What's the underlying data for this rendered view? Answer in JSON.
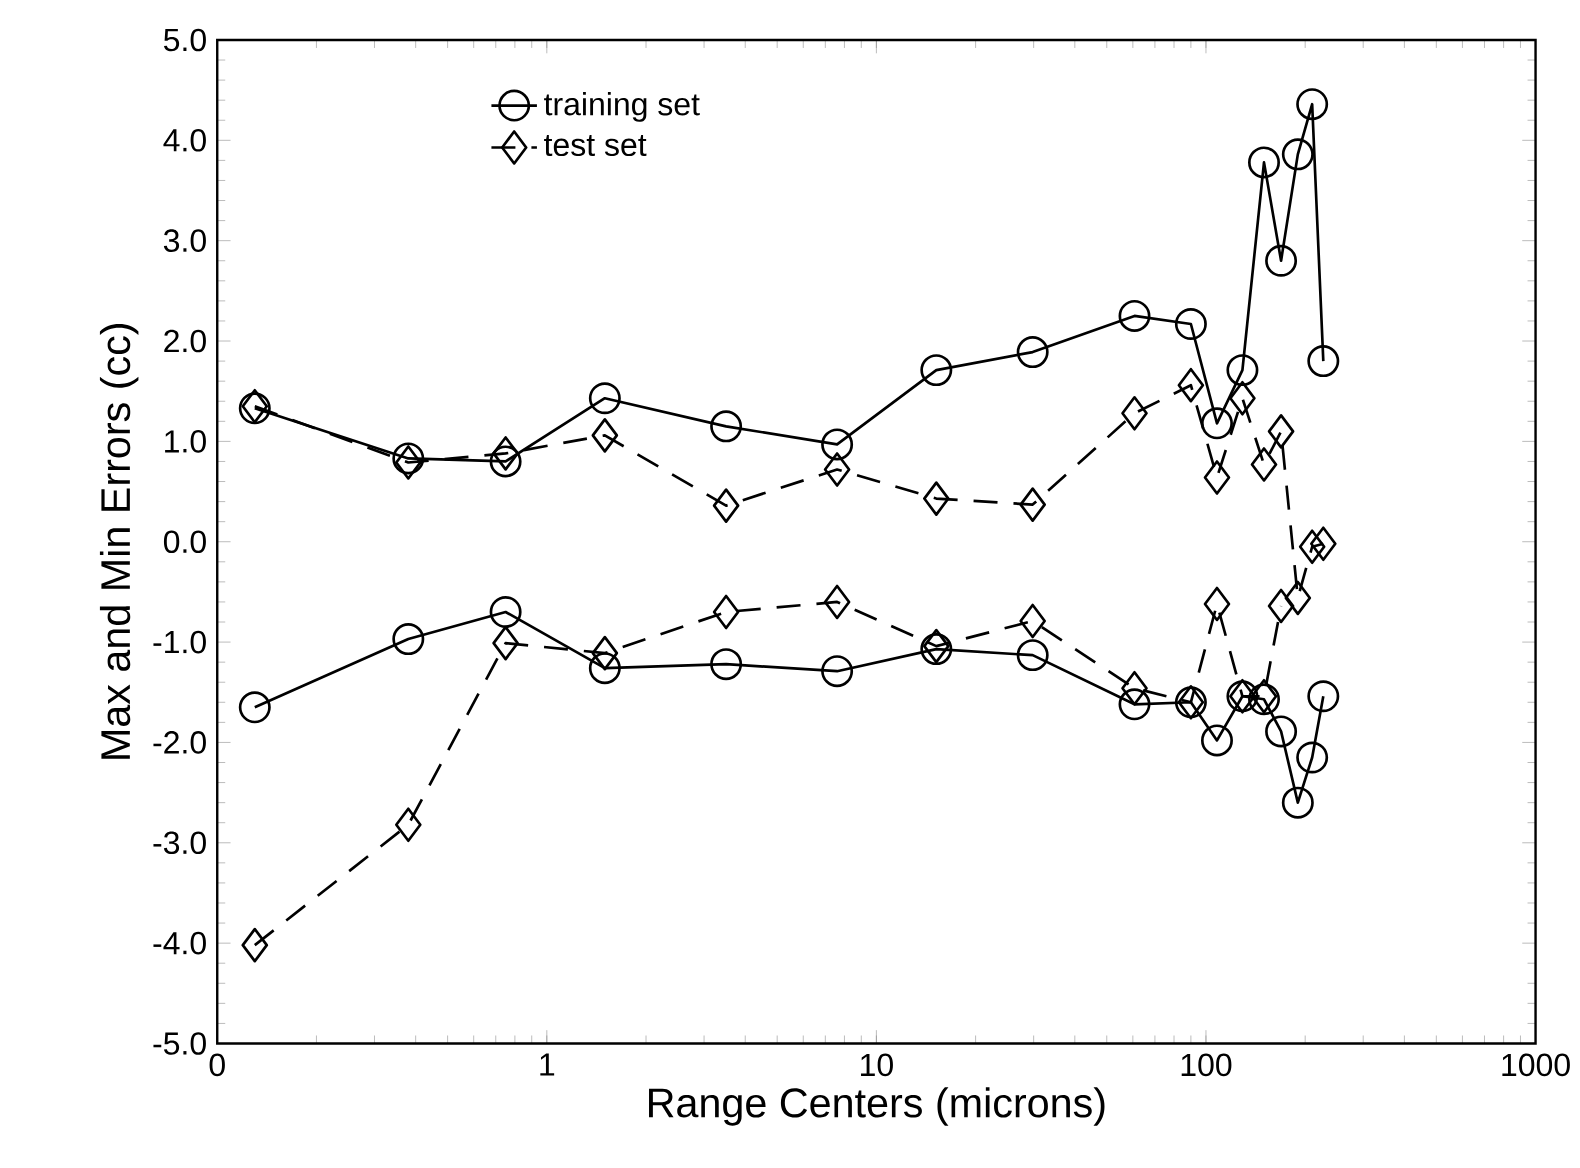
{
  "chart_data": {
    "type": "line",
    "xlabel": "Range Centers (microns)",
    "ylabel": "Max and Min Errors (cc)",
    "log": "x",
    "xlim": [
      0.1,
      1000
    ],
    "ylim": [
      -5,
      5
    ],
    "xticks": [
      {
        "value": 0.1,
        "label": "0"
      },
      1,
      10,
      100,
      1000
    ],
    "yticks": [
      {
        "value": -5,
        "label": "-5.0"
      },
      {
        "value": -4,
        "label": "-4.0"
      },
      {
        "value": -3,
        "label": "-3.0"
      },
      {
        "value": -2,
        "label": "-2.0"
      },
      {
        "value": -1,
        "label": "-1.0"
      },
      {
        "value": 0,
        "label": "0.0"
      },
      {
        "value": 1,
        "label": "1.0"
      },
      {
        "value": 2,
        "label": "2.0"
      },
      {
        "value": 3,
        "label": "3.0"
      },
      {
        "value": 4,
        "label": "4.0"
      },
      {
        "value": 5,
        "label": "5.0"
      }
    ],
    "grid": false,
    "legend": "top left",
    "x": [
      0.13,
      0.38,
      0.75,
      1.5,
      3.5,
      7.6,
      15.2,
      29.8,
      60.7,
      90,
      108,
      129,
      150,
      169,
      190,
      210,
      227
    ],
    "series": [
      {
        "name": "training set",
        "color": "#000000",
        "marker": "circle",
        "line_style": "solid",
        "values": [
          1.33,
          0.83,
          0.8,
          1.43,
          1.15,
          0.97,
          1.71,
          1.89,
          2.25,
          2.17,
          1.18,
          1.71,
          3.78,
          2.8,
          3.86,
          4.36,
          1.8
        ]
      },
      {
        "name": "test set",
        "color": "#000000",
        "marker": "diamond",
        "line_style": "dashed",
        "values": [
          1.35,
          0.79,
          0.88,
          1.06,
          0.36,
          0.72,
          0.43,
          0.37,
          1.28,
          1.56,
          0.64,
          1.43,
          0.77,
          1.1,
          -0.56,
          -0.05,
          -0.02
        ]
      },
      {
        "color": "#000000",
        "marker": "circle",
        "line_style": "solid",
        "values": [
          -1.65,
          -0.97,
          -0.7,
          -1.26,
          -1.22,
          -1.29,
          -1.07,
          -1.13,
          -1.62,
          -1.6,
          -1.98,
          -1.54,
          -1.57,
          -1.89,
          -2.6,
          -2.15,
          -1.54
        ]
      },
      {
        "color": "#000000",
        "marker": "diamond",
        "line_style": "dashed",
        "values": [
          -4.02,
          -2.82,
          -1.01,
          -1.11,
          -0.7,
          -0.6,
          -1.04,
          -0.79,
          -1.46,
          -1.6,
          -0.62,
          -1.54,
          -1.54,
          -0.64,
          null,
          null,
          null
        ]
      }
    ]
  }
}
